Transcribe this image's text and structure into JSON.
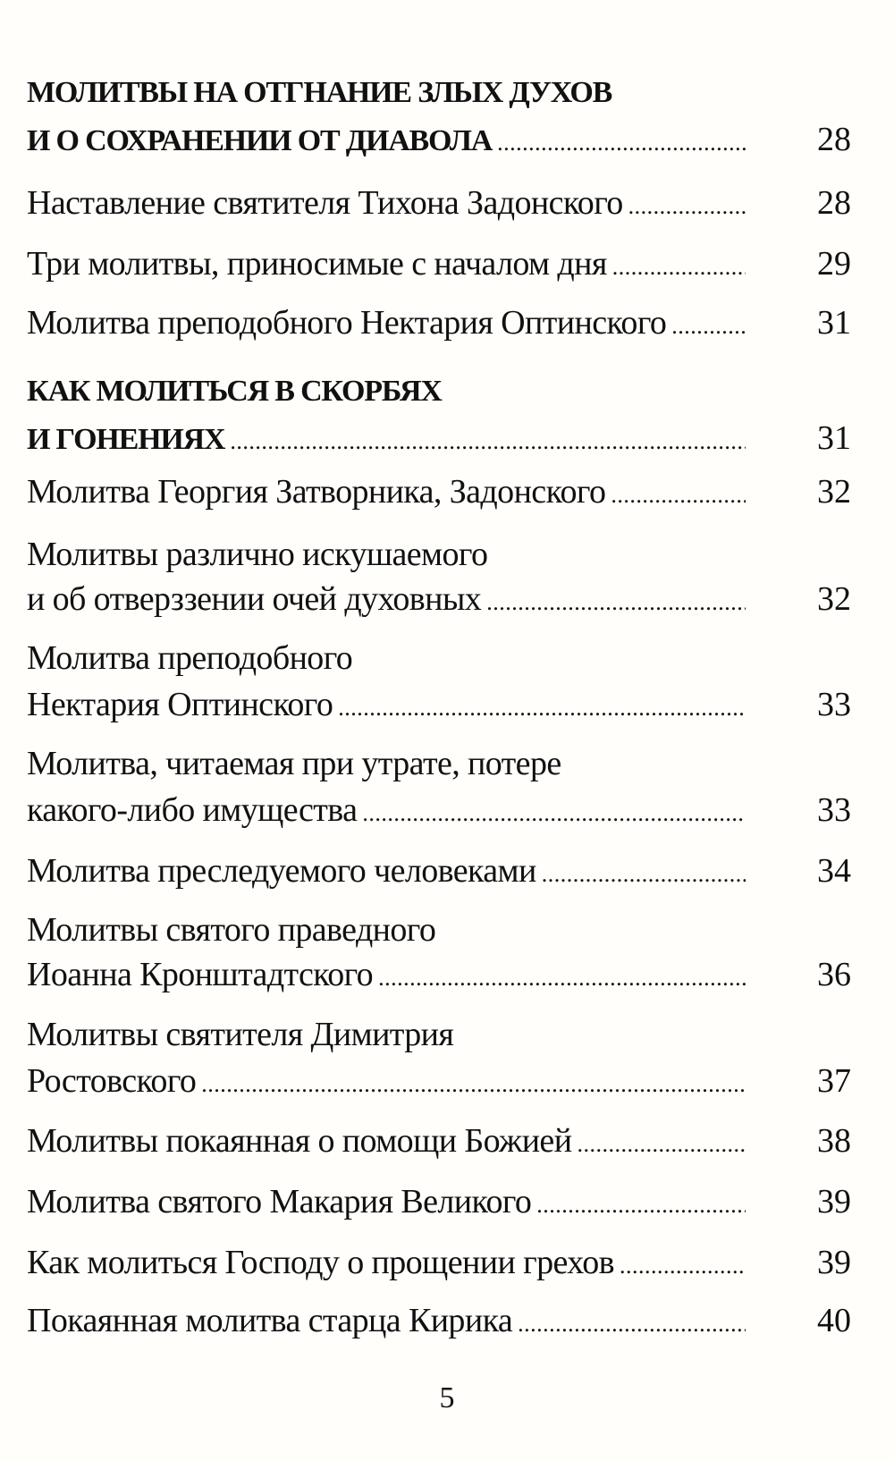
{
  "sections": [
    {
      "heading": [
        "МОЛИТВЫ НА ОТГНАНИЕ ЗЛЫХ ДУХОВ",
        "И О СОХРАНЕНИИ ОТ ДИАВОЛА"
      ],
      "page": "28",
      "entries": [
        {
          "lines": [
            "Наставление святителя Тихона Задонского"
          ],
          "page": "28"
        },
        {
          "lines": [
            "Три молитвы, приносимые с началом дня"
          ],
          "page": "29"
        },
        {
          "lines": [
            "Молитва преподобного Нектария Оптинского"
          ],
          "page": "31"
        }
      ]
    },
    {
      "heading": [
        "КАК МОЛИТЬСЯ В СКОРБЯХ",
        "И ГОНЕНИЯХ"
      ],
      "page": "31",
      "entries": [
        {
          "lines": [
            "Молитва Георгия Затворника, Задонского"
          ],
          "page": "32"
        },
        {
          "lines": [
            "Молитвы различно искушаемого",
            "и об отверззении очей духовных"
          ],
          "page": "32"
        },
        {
          "lines": [
            "Молитва преподобного",
            "Нектария Оптинского"
          ],
          "page": "33"
        },
        {
          "lines": [
            "Молитва, читаемая при утрате, потере",
            "какого-либо имущества"
          ],
          "page": "33"
        },
        {
          "lines": [
            "Молитва преследуемого человеками"
          ],
          "page": "34"
        },
        {
          "lines": [
            "Молитвы святого праведного",
            "Иоанна Кронштадтского"
          ],
          "page": "36"
        },
        {
          "lines": [
            "Молитвы святителя Димитрия",
            "Ростовского"
          ],
          "page": "37"
        },
        {
          "lines": [
            "Молитвы покаянная о помощи Божией"
          ],
          "page": "38"
        },
        {
          "lines": [
            "Молитва святого Макария Великого"
          ],
          "page": "39"
        },
        {
          "lines": [
            "Как молиться Господу о прощении грехов"
          ],
          "page": "39"
        },
        {
          "lines": [
            "Покаянная молитва старца Кирика"
          ],
          "page": "40"
        }
      ]
    }
  ],
  "page_number": "5"
}
